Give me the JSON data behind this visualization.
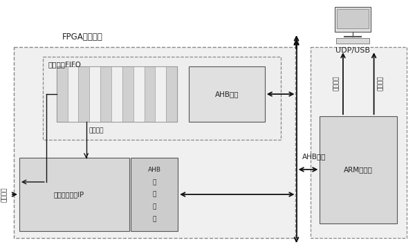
{
  "bg_color": "#ffffff",
  "fpga_label": "FPGA硬件实现",
  "fifo_label": "中频数据FIFO",
  "ahb_port_label": "AHB接口",
  "nav_label": "导航硬件加速IP",
  "ahb_logic_lines": [
    "AHB",
    "接",
    "口",
    "逻",
    "辑"
  ],
  "arm_label": "ARM处理器",
  "udp_label": "UDP/USB",
  "ahb_bus_label": "AHB总线",
  "zhongpin_label": "中频数据",
  "tiaoshi_label": "调试信息",
  "zhongpin_left_label": "中频数据",
  "caiyang_label": "采样时钟"
}
